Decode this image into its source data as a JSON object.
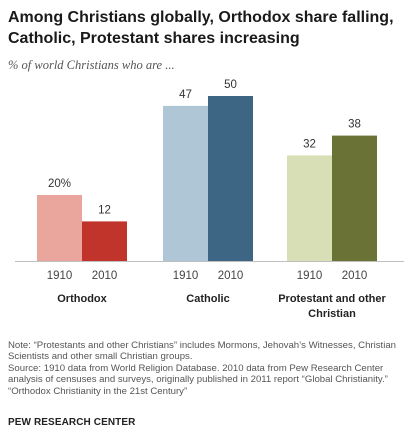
{
  "title": "Among Christians globally, Orthodox share falling, Catholic, Protestant shares increasing",
  "subtitle": "% of world Christians who are ...",
  "chart_data": {
    "type": "bar",
    "title": "Among Christians globally, Orthodox share falling, Catholic, Protestant shares increasing",
    "subtitle": "% of world Christians who are ...",
    "groups": [
      "Orthodox",
      "Catholic",
      "Protestant and other Christian"
    ],
    "group_label_lines": [
      [
        "Orthodox"
      ],
      [
        "Catholic"
      ],
      [
        "Protestant and other",
        "Christian"
      ]
    ],
    "years": [
      "1910",
      "2010"
    ],
    "series": [
      {
        "name": "1910",
        "values": [
          20,
          47,
          32
        ],
        "labels": [
          "20%",
          "47",
          "32"
        ]
      },
      {
        "name": "2010",
        "values": [
          12,
          50,
          38
        ],
        "labels": [
          "12",
          "50",
          "38"
        ]
      }
    ],
    "colors": [
      [
        "#eaa59d",
        "#c0342b"
      ],
      [
        "#aec6d6",
        "#3d6584"
      ],
      [
        "#d8dfb6",
        "#6b7236"
      ]
    ],
    "ylim": [
      0,
      60
    ],
    "grid": false,
    "legend": "none"
  },
  "notes": [
    "Note: “Protestants and other Christians” includes Mormons, Jehovah’s Witnesses, Christian Scientists and other small Christian groups.",
    "Source: 1910 data from World Religion Database. 2010 data from Pew Research Center analysis of censuses and surveys, originally published in 2011 report “Global Christianity.”",
    "“Orthodox Christianity in the 21st Century”"
  ],
  "brand": "PEW RESEARCH CENTER"
}
